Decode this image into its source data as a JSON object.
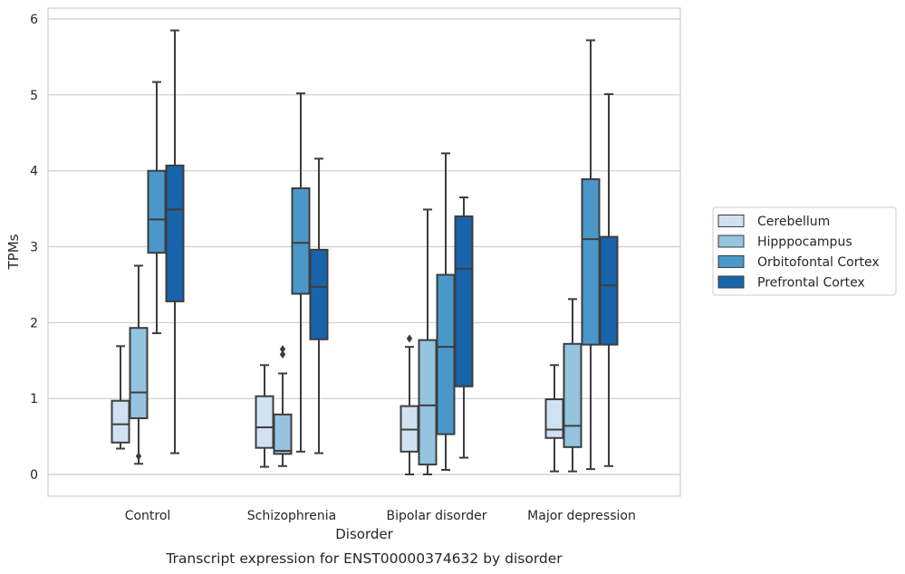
{
  "caption": "Transcript expression for ENST00000374632 by disorder",
  "chart_data": {
    "type": "box",
    "xlabel": "Disorder",
    "ylabel": "TPMs",
    "ylim": [
      -0.28,
      6.18
    ],
    "yticks": [
      0,
      1,
      2,
      3,
      4,
      5,
      6
    ],
    "categories": [
      "Control",
      "Schizophrenia",
      "Bipolar disorder",
      "Major depression"
    ],
    "grid": "horizontal",
    "legend_position": "right",
    "series": [
      {
        "name": "Cerebellum",
        "color": "#d0e1f2",
        "boxes": [
          {
            "whislo": 0.34,
            "q1": 0.42,
            "median": 0.66,
            "q3": 0.97,
            "whishi": 1.69,
            "fliers": []
          },
          {
            "whislo": 0.1,
            "q1": 0.35,
            "median": 0.62,
            "q3": 1.03,
            "whishi": 1.44,
            "fliers": []
          },
          {
            "whislo": 0.0,
            "q1": 0.3,
            "median": 0.59,
            "q3": 0.9,
            "whishi": 1.68,
            "fliers": [
              1.79
            ]
          },
          {
            "whislo": 0.04,
            "q1": 0.48,
            "median": 0.59,
            "q3": 0.99,
            "whishi": 1.44,
            "fliers": []
          }
        ]
      },
      {
        "name": "Hipppocampus",
        "color": "#94c4df",
        "boxes": [
          {
            "whislo": 0.14,
            "q1": 0.74,
            "median": 1.08,
            "q3": 1.93,
            "whishi": 2.75,
            "fliers": [
              0.24
            ]
          },
          {
            "whislo": 0.11,
            "q1": 0.27,
            "median": 0.31,
            "q3": 0.79,
            "whishi": 1.33,
            "fliers": [
              1.58,
              1.65
            ]
          },
          {
            "whislo": 0.0,
            "q1": 0.13,
            "median": 0.91,
            "q3": 1.77,
            "whishi": 3.49,
            "fliers": []
          },
          {
            "whislo": 0.04,
            "q1": 0.36,
            "median": 0.64,
            "q3": 1.72,
            "whishi": 2.31,
            "fliers": []
          }
        ]
      },
      {
        "name": "Orbitofontal Cortex",
        "color": "#4a98c9",
        "boxes": [
          {
            "whislo": 1.86,
            "q1": 2.92,
            "median": 3.36,
            "q3": 4.0,
            "whishi": 5.17,
            "fliers": []
          },
          {
            "whislo": 0.3,
            "q1": 2.38,
            "median": 3.05,
            "q3": 3.77,
            "whishi": 5.02,
            "fliers": []
          },
          {
            "whislo": 0.06,
            "q1": 0.53,
            "median": 1.68,
            "q3": 2.63,
            "whishi": 4.23,
            "fliers": []
          },
          {
            "whislo": 0.07,
            "q1": 1.71,
            "median": 3.1,
            "q3": 3.89,
            "whishi": 5.72,
            "fliers": []
          }
        ]
      },
      {
        "name": "Prefrontal Cortex",
        "color": "#1764ab",
        "boxes": [
          {
            "whislo": 0.28,
            "q1": 2.28,
            "median": 3.49,
            "q3": 4.07,
            "whishi": 5.85,
            "fliers": []
          },
          {
            "whislo": 0.28,
            "q1": 1.78,
            "median": 2.47,
            "q3": 2.96,
            "whishi": 4.16,
            "fliers": []
          },
          {
            "whislo": 0.22,
            "q1": 1.16,
            "median": 2.71,
            "q3": 3.4,
            "whishi": 3.65,
            "fliers": []
          },
          {
            "whislo": 0.11,
            "q1": 1.71,
            "median": 2.49,
            "q3": 3.13,
            "whishi": 5.01,
            "fliers": []
          }
        ]
      }
    ]
  }
}
